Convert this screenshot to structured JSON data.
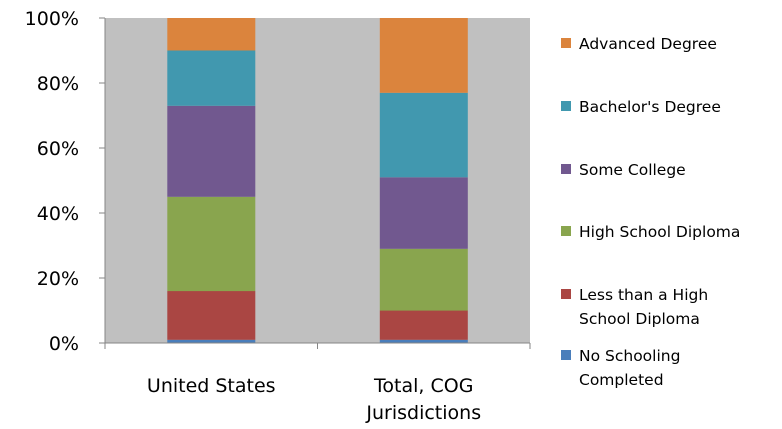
{
  "chart_data": {
    "type": "bar",
    "stacked": true,
    "normalized_percent": true,
    "categories": [
      [
        "United States"
      ],
      [
        "Total, COG",
        "Jurisdictions"
      ]
    ],
    "series": [
      {
        "name": "No Schooling Completed",
        "label_lines": [
          "No Schooling",
          "Completed"
        ],
        "color": "#4a7ebb",
        "values": [
          1,
          1
        ]
      },
      {
        "name": "Less than a High School Diploma",
        "label_lines": [
          "Less than a High",
          "School Diploma"
        ],
        "color": "#aa4643",
        "values": [
          15,
          9
        ]
      },
      {
        "name": "High School Diploma",
        "label_lines": [
          "High School Diploma"
        ],
        "color": "#89a54e",
        "values": [
          29,
          19
        ]
      },
      {
        "name": "Some College",
        "label_lines": [
          "Some College"
        ],
        "color": "#71588f",
        "values": [
          28,
          22
        ]
      },
      {
        "name": "Bachelor's Degree",
        "label_lines": [
          "Bachelor's Degree"
        ],
        "color": "#4198af",
        "values": [
          17,
          26
        ]
      },
      {
        "name": "Advanced Degree",
        "label_lines": [
          "Advanced Degree"
        ],
        "color": "#db843d",
        "values": [
          10,
          23
        ]
      }
    ],
    "yticks": [
      "0%",
      "20%",
      "40%",
      "60%",
      "80%",
      "100%"
    ],
    "ylim": [
      0,
      100
    ],
    "grid": false,
    "plot_background": "#c0c0c0",
    "legend_position": "right"
  }
}
